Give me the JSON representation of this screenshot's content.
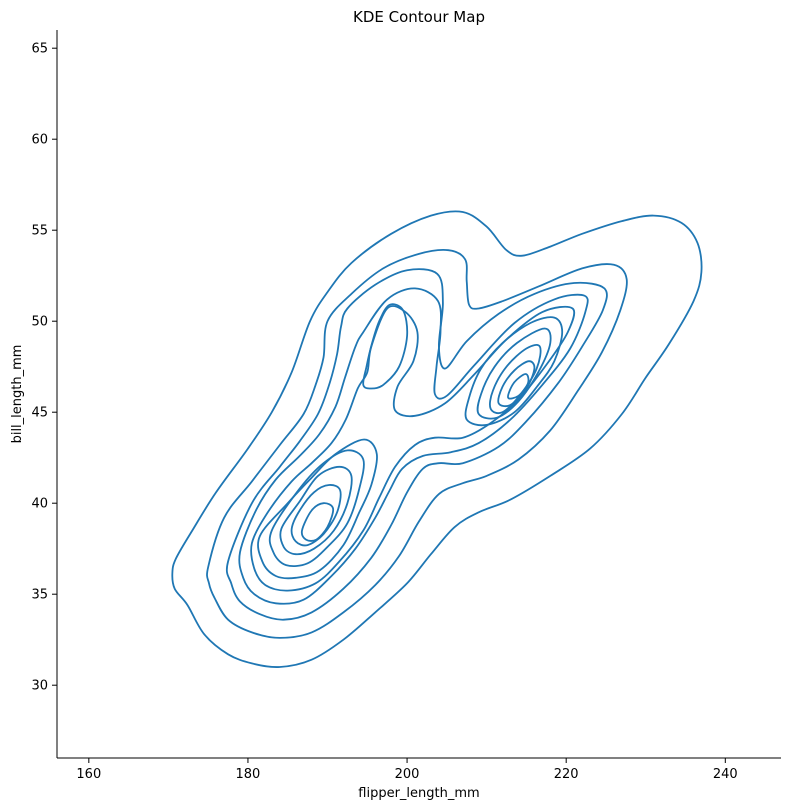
{
  "chart_data": {
    "type": "contour",
    "title": "KDE Contour Map",
    "xlabel": "flipper_length_mm",
    "ylabel": "bill_length_mm",
    "xlim": [
      156,
      247
    ],
    "ylim": [
      26,
      66
    ],
    "xticks": [
      "160",
      "180",
      "200",
      "220",
      "240"
    ],
    "yticks": [
      "30",
      "35",
      "40",
      "45",
      "50",
      "55",
      "60",
      "65"
    ],
    "grid": false,
    "line_color": "#1f77b4",
    "contours": [
      {
        "level": 1,
        "points": [
          [
            171,
            37
          ],
          [
            170.5,
            36.2
          ],
          [
            170.8,
            35.3
          ],
          [
            172.4,
            34.4
          ],
          [
            174.5,
            32.8
          ],
          [
            177.5,
            31.7
          ],
          [
            180.5,
            31.2
          ],
          [
            184,
            31
          ],
          [
            188,
            31.4
          ],
          [
            192,
            32.5
          ],
          [
            196,
            34
          ],
          [
            200,
            35.6
          ],
          [
            203,
            37.2
          ],
          [
            206,
            38.7
          ],
          [
            209,
            39.5
          ],
          [
            213,
            40.2
          ],
          [
            218,
            41.5
          ],
          [
            223,
            43
          ],
          [
            227,
            44.9
          ],
          [
            230,
            46.9
          ],
          [
            233,
            48.8
          ],
          [
            236,
            51.1
          ],
          [
            237,
            52.7
          ],
          [
            236.5,
            54.3
          ],
          [
            234.5,
            55.4
          ],
          [
            231,
            55.8
          ],
          [
            227,
            55.5
          ],
          [
            222,
            54.8
          ],
          [
            218,
            54.1
          ],
          [
            214.5,
            53.6
          ],
          [
            212.5,
            53.9
          ],
          [
            210,
            55.2
          ],
          [
            207,
            56
          ],
          [
            203,
            55.8
          ],
          [
            198,
            54.8
          ],
          [
            193,
            53.2
          ],
          [
            190,
            51.6
          ],
          [
            187.8,
            50
          ],
          [
            185.5,
            47.2
          ],
          [
            183,
            45
          ],
          [
            180,
            43
          ],
          [
            176,
            40.6
          ],
          [
            173,
            38.5
          ]
        ]
      },
      {
        "level": 2,
        "points": [
          [
            175,
            36.5
          ],
          [
            175.1,
            35.6
          ],
          [
            175.8,
            34.8
          ],
          [
            177.5,
            33.6
          ],
          [
            180.5,
            32.9
          ],
          [
            184,
            32.6
          ],
          [
            188,
            32.9
          ],
          [
            192,
            34
          ],
          [
            196,
            35.5
          ],
          [
            199,
            37.1
          ],
          [
            201.5,
            39
          ],
          [
            204,
            40.5
          ],
          [
            207,
            41.1
          ],
          [
            210,
            41.5
          ],
          [
            214,
            42.4
          ],
          [
            218,
            44
          ],
          [
            221.5,
            46.2
          ],
          [
            224.5,
            48.3
          ],
          [
            226.8,
            50.6
          ],
          [
            227.6,
            52.3
          ],
          [
            226,
            53.1
          ],
          [
            222,
            52.9
          ],
          [
            216.5,
            51.9
          ],
          [
            212,
            51.1
          ],
          [
            209,
            50.7
          ],
          [
            207.8,
            50.9
          ],
          [
            207.5,
            52.2
          ],
          [
            207.3,
            53.4
          ],
          [
            205.2,
            53.9
          ],
          [
            201.5,
            53.7
          ],
          [
            197,
            52.9
          ],
          [
            193,
            51.5
          ],
          [
            190,
            50
          ],
          [
            189.5,
            48
          ],
          [
            188.5,
            46.5
          ],
          [
            187,
            44.9
          ],
          [
            184,
            43.2
          ],
          [
            180.5,
            41.2
          ],
          [
            177,
            39.2
          ]
        ]
      },
      {
        "level": 3,
        "points": [
          [
            177.5,
            36.8
          ],
          [
            177.9,
            35.6
          ],
          [
            179,
            34.6
          ],
          [
            181.5,
            33.9
          ],
          [
            184.5,
            33.6
          ],
          [
            188,
            34
          ],
          [
            192,
            35.3
          ],
          [
            195.5,
            37
          ],
          [
            198,
            38.8
          ],
          [
            200,
            40.6
          ],
          [
            202,
            41.9
          ],
          [
            204,
            42.2
          ],
          [
            207,
            42.2
          ],
          [
            211.5,
            43.1
          ],
          [
            215,
            44.5
          ],
          [
            219,
            46.6
          ],
          [
            222,
            48.6
          ],
          [
            224.6,
            50.6
          ],
          [
            224.8,
            51.8
          ],
          [
            221,
            52.1
          ],
          [
            216,
            51.5
          ],
          [
            211.5,
            50.4
          ],
          [
            207.5,
            48.9
          ],
          [
            204.8,
            47.4
          ],
          [
            204,
            48.6
          ],
          [
            204.5,
            51
          ],
          [
            203.8,
            52.6
          ],
          [
            200,
            52.8
          ],
          [
            196,
            52
          ],
          [
            192.5,
            50.7
          ],
          [
            191.7,
            49.7
          ],
          [
            191.2,
            48.2
          ],
          [
            190.2,
            46.5
          ],
          [
            188.8,
            44.9
          ],
          [
            186.5,
            43.4
          ],
          [
            184,
            42
          ],
          [
            180.5,
            40
          ]
        ]
      },
      {
        "level": 4,
        "points": [
          [
            179,
            37.3
          ],
          [
            179.4,
            35.9
          ],
          [
            180.8,
            35
          ],
          [
            183.5,
            34.5
          ],
          [
            187,
            34.7
          ],
          [
            190.5,
            36
          ],
          [
            193.5,
            37.5
          ],
          [
            196,
            39.2
          ],
          [
            197.8,
            40.7
          ],
          [
            199.4,
            41.9
          ],
          [
            202,
            42.6
          ],
          [
            205.5,
            42.8
          ],
          [
            209,
            43.3
          ],
          [
            213,
            44.6
          ],
          [
            217,
            46.5
          ],
          [
            220.5,
            48.5
          ],
          [
            222.4,
            50.5
          ],
          [
            222.3,
            51.4
          ],
          [
            218.5,
            51.2
          ],
          [
            213.5,
            49.9
          ],
          [
            208.5,
            47.6
          ],
          [
            205,
            45.9
          ],
          [
            203.5,
            46
          ],
          [
            203.7,
            47.5
          ],
          [
            204.2,
            49.4
          ],
          [
            203.9,
            51.1
          ],
          [
            201,
            51.8
          ],
          [
            197.5,
            51.2
          ],
          [
            194.5,
            49.4
          ],
          [
            193.5,
            48.6
          ],
          [
            192.2,
            46.9
          ],
          [
            191,
            45.3
          ],
          [
            189,
            43.8
          ],
          [
            186.5,
            42.6
          ],
          [
            183.5,
            41.3
          ],
          [
            181,
            39.6
          ]
        ]
      },
      {
        "level": 5,
        "points": [
          [
            180.5,
            37.8
          ],
          [
            180.8,
            36.4
          ],
          [
            182.2,
            35.5
          ],
          [
            185,
            35.2
          ],
          [
            188.5,
            35.6
          ],
          [
            191.5,
            36.8
          ],
          [
            194.5,
            38.5
          ],
          [
            196.5,
            40.3
          ],
          [
            198.5,
            42
          ],
          [
            201,
            43.2
          ],
          [
            203.5,
            43.6
          ],
          [
            207,
            43.6
          ],
          [
            210.5,
            44.4
          ],
          [
            214,
            45.7
          ],
          [
            217.5,
            47.6
          ],
          [
            220.2,
            49.4
          ],
          [
            220.8,
            50.7
          ],
          [
            217,
            50.5
          ],
          [
            212.5,
            49
          ],
          [
            208.5,
            47.1
          ],
          [
            204.8,
            45.5
          ],
          [
            201,
            44.8
          ],
          [
            198.5,
            45.1
          ],
          [
            198.8,
            46.4
          ],
          [
            200.8,
            47.8
          ],
          [
            201.3,
            49.4
          ],
          [
            199.8,
            50.5
          ],
          [
            197.5,
            50.7
          ],
          [
            195.5,
            48.6
          ],
          [
            195,
            47.2
          ],
          [
            193.8,
            46.3
          ],
          [
            192.3,
            44.6
          ],
          [
            190.5,
            43.3
          ],
          [
            188,
            42.2
          ],
          [
            185.5,
            41.2
          ],
          [
            182.5,
            39.5
          ]
        ]
      },
      {
        "level": 6,
        "points": [
          [
            181.5,
            38.2
          ],
          [
            181.8,
            36.8
          ],
          [
            183.5,
            36
          ],
          [
            186,
            35.9
          ],
          [
            189,
            36.3
          ],
          [
            192,
            37.7
          ],
          [
            194,
            39.5
          ],
          [
            195.5,
            41
          ],
          [
            196.2,
            42.7
          ],
          [
            194.6,
            43.5
          ],
          [
            191,
            42.7
          ],
          [
            188,
            41.4
          ],
          [
            185,
            40
          ]
        ]
      },
      {
        "level": 6.5,
        "points": [
          [
            194.5,
            46.5
          ],
          [
            194.9,
            47.5
          ],
          [
            195.6,
            48.8
          ],
          [
            196.5,
            50
          ],
          [
            197.8,
            50.9
          ],
          [
            199.5,
            50.6
          ],
          [
            200,
            49.2
          ],
          [
            199,
            47.5
          ],
          [
            197,
            46.5
          ],
          [
            195.5,
            46.3
          ]
        ]
      },
      {
        "level": 6.8,
        "points": [
          [
            207.5,
            44.6
          ],
          [
            207.8,
            45.8
          ],
          [
            209.3,
            47.4
          ],
          [
            212,
            48.8
          ],
          [
            215.5,
            49.9
          ],
          [
            218.5,
            50.2
          ],
          [
            219.5,
            49.4
          ],
          [
            218.5,
            47.8
          ],
          [
            216.5,
            46.5
          ],
          [
            213.5,
            45
          ],
          [
            210,
            44.3
          ]
        ]
      },
      {
        "level": 7,
        "points": [
          [
            183,
            38.5
          ],
          [
            183.2,
            37.3
          ],
          [
            184.8,
            36.6
          ],
          [
            187.5,
            36.7
          ],
          [
            190,
            37.6
          ],
          [
            192.5,
            38.9
          ],
          [
            194,
            40.8
          ],
          [
            194.5,
            42.4
          ],
          [
            192.5,
            42.9
          ],
          [
            189.5,
            42.2
          ],
          [
            186.5,
            40.8
          ]
        ]
      },
      {
        "level": 7.5,
        "points": [
          [
            209,
            44.9
          ],
          [
            209.3,
            46
          ],
          [
            211,
            47.5
          ],
          [
            213.8,
            48.8
          ],
          [
            217.3,
            49.6
          ],
          [
            218,
            48.8
          ],
          [
            216.5,
            47.2
          ],
          [
            214,
            45.6
          ],
          [
            211.3,
            44.7
          ]
        ]
      },
      {
        "level": 8,
        "points": [
          [
            184.2,
            38.6
          ],
          [
            184.5,
            37.6
          ],
          [
            186,
            37.2
          ],
          [
            188.3,
            37.5
          ],
          [
            190.8,
            38.5
          ],
          [
            192.5,
            40
          ],
          [
            193,
            41.5
          ],
          [
            191.5,
            42
          ],
          [
            188.8,
            41.5
          ],
          [
            186.5,
            40.1
          ]
        ]
      },
      {
        "level": 8.5,
        "points": [
          [
            210.5,
            45.2
          ],
          [
            210.8,
            46.2
          ],
          [
            212.5,
            47.5
          ],
          [
            215,
            48.5
          ],
          [
            216.7,
            48.6
          ],
          [
            216.3,
            47.4
          ],
          [
            214.3,
            46
          ],
          [
            212,
            45
          ]
        ]
      },
      {
        "level": 9,
        "points": [
          [
            185.5,
            38.6
          ],
          [
            186,
            37.9
          ],
          [
            187.5,
            37.7
          ],
          [
            189.5,
            38.3
          ],
          [
            191.2,
            39.5
          ],
          [
            191.6,
            40.7
          ],
          [
            190.2,
            41
          ],
          [
            188.3,
            40.6
          ],
          [
            186.5,
            39.6
          ]
        ]
      },
      {
        "level": 9.5,
        "points": [
          [
            211.5,
            45.5
          ],
          [
            212,
            46.4
          ],
          [
            213.5,
            47.3
          ],
          [
            215.3,
            47.8
          ],
          [
            216,
            47.4
          ],
          [
            215,
            46.3
          ],
          [
            213,
            45.4
          ]
        ]
      },
      {
        "level": 10,
        "points": [
          [
            186.8,
            38.5
          ],
          [
            187.3,
            38
          ],
          [
            188.6,
            38
          ],
          [
            190,
            38.7
          ],
          [
            190.7,
            39.7
          ],
          [
            189.5,
            40
          ],
          [
            188,
            39.6
          ]
        ]
      },
      {
        "level": 10.5,
        "points": [
          [
            212.7,
            45.8
          ],
          [
            213.4,
            46.6
          ],
          [
            214.9,
            47.1
          ],
          [
            215.2,
            46.6
          ],
          [
            214,
            45.9
          ]
        ]
      }
    ]
  }
}
